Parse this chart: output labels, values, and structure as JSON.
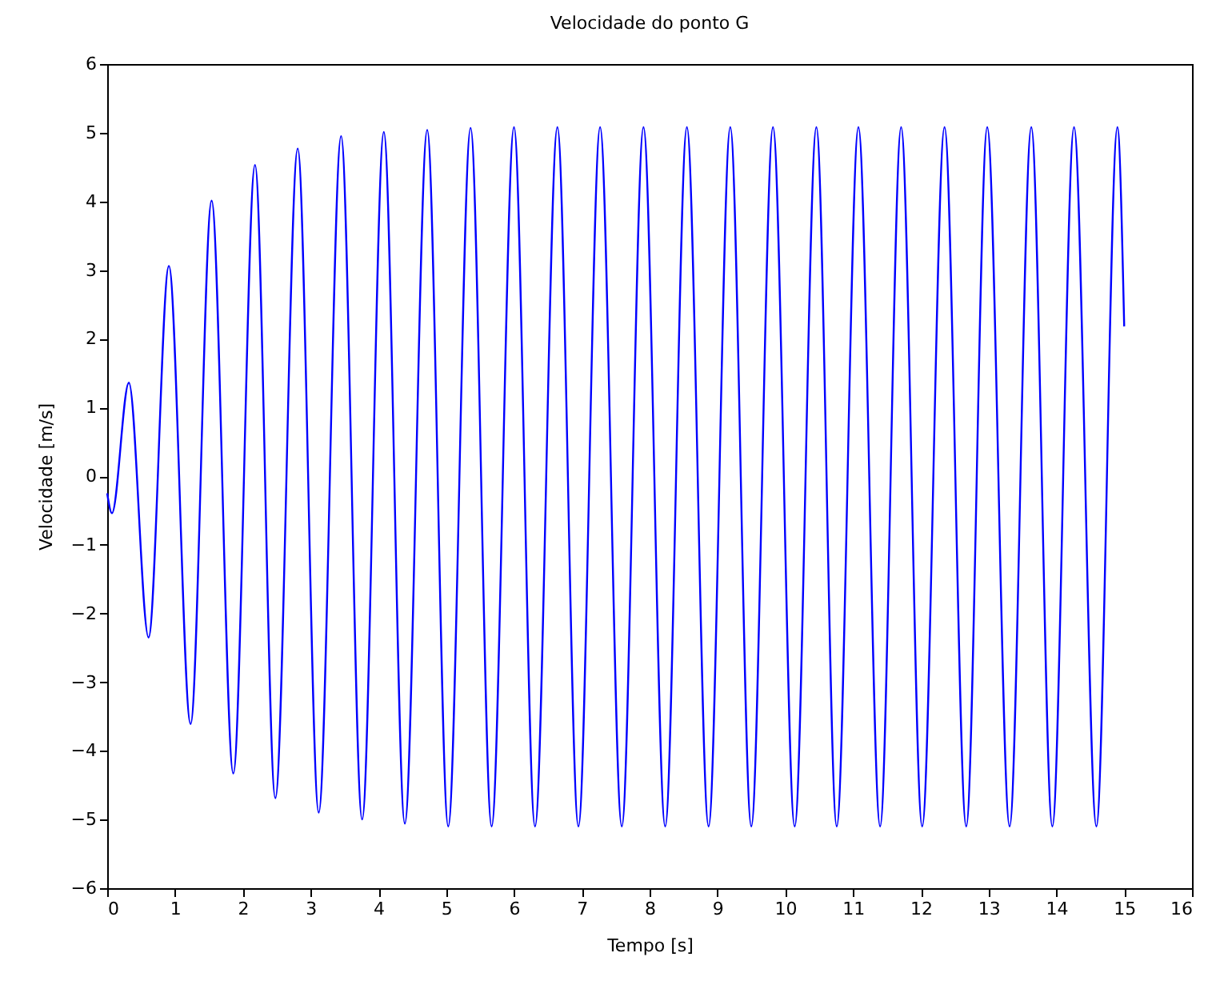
{
  "chart_data": {
    "type": "line",
    "title": "Velocidade do ponto G",
    "xlabel": "Tempo [s]",
    "ylabel": "Velocidade [m/s]",
    "x": [
      0,
      0.07,
      0.32,
      0.61,
      0.91,
      1.23,
      1.54,
      1.86,
      2.18,
      2.48,
      2.81,
      3.12,
      3.45,
      3.76,
      4.08,
      4.39,
      4.72,
      5.03,
      5.36,
      5.67,
      6.0,
      6.31,
      6.64,
      6.95,
      7.27,
      7.59,
      7.91,
      8.23,
      8.55,
      8.87,
      9.19,
      9.5,
      9.82,
      10.14,
      10.46,
      10.76,
      11.08,
      11.4,
      11.71,
      12.02,
      12.35,
      12.67,
      12.98,
      13.31,
      13.63,
      13.94,
      14.26,
      14.59,
      14.9,
      15.0
    ],
    "series": [
      {
        "color": "#0000ff",
        "values": [
          -0.25,
          -0.54,
          1.36,
          -2.35,
          3.06,
          -3.61,
          4.01,
          -4.33,
          4.53,
          -4.69,
          4.77,
          -4.9,
          4.95,
          -5.0,
          5.01,
          -5.06,
          5.04,
          -5.1,
          5.07,
          -5.1,
          5.08,
          -5.1,
          5.08,
          -5.1,
          5.08,
          -5.1,
          5.08,
          -5.1,
          5.08,
          -5.1,
          5.08,
          -5.1,
          5.08,
          -5.1,
          5.08,
          -5.1,
          5.08,
          -5.1,
          5.08,
          -5.1,
          5.08,
          -5.1,
          5.08,
          -5.1,
          5.08,
          -5.1,
          5.08,
          -5.1,
          5.08,
          2.18
        ]
      }
    ],
    "xlim": [
      0,
      16
    ],
    "xticks": [
      0,
      1,
      2,
      3,
      4,
      5,
      6,
      7,
      8,
      9,
      10,
      11,
      12,
      13,
      14,
      15,
      16
    ],
    "ylim": [
      -6,
      6
    ],
    "yticks": [
      -6,
      -5,
      -4,
      -3,
      -2,
      -1,
      0,
      1,
      2,
      3,
      4,
      5,
      6
    ],
    "grid": false,
    "marker": "none",
    "line_style": "solid"
  }
}
